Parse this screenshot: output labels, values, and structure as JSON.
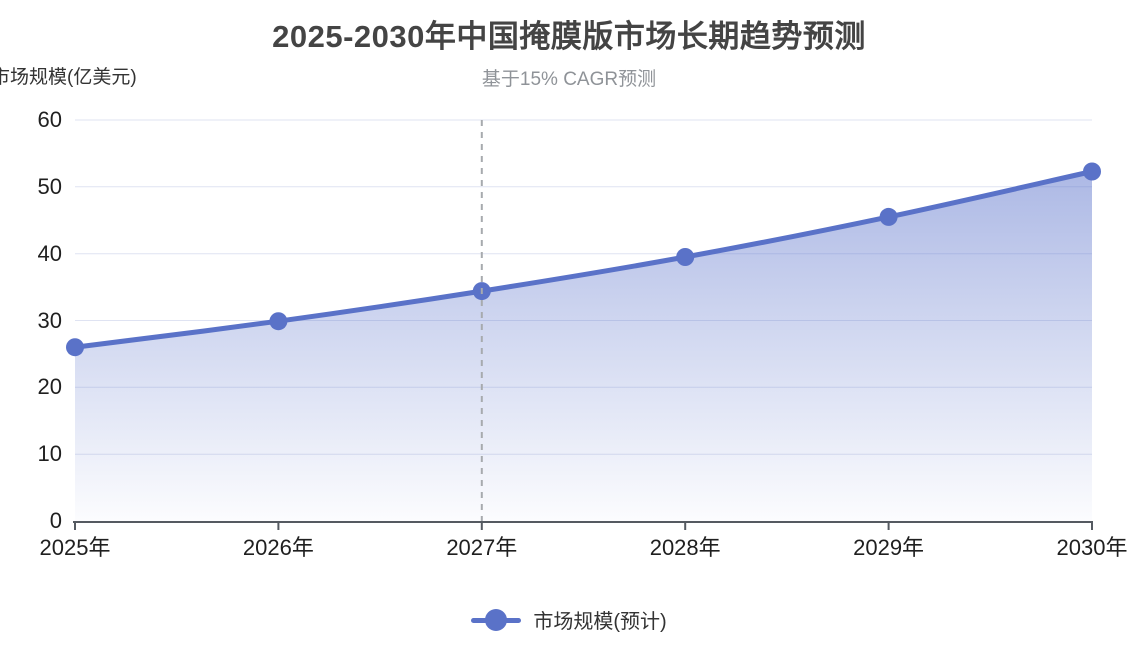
{
  "chart_data": {
    "type": "line",
    "title": "2025-2030年中国掩膜版市场长期趋势预测",
    "subtitle": "基于15% CAGR预测",
    "y_axis_name": "市场规模(亿美元)",
    "categories": [
      "2025年",
      "2026年",
      "2027年",
      "2028年",
      "2029年",
      "2030年"
    ],
    "series": [
      {
        "name": "市场规模(预计)",
        "values": [
          26,
          29.9,
          34.4,
          39.5,
          45.5,
          52.3
        ]
      }
    ],
    "ylim": [
      0,
      60
    ],
    "y_ticks_top_to_bottom": [
      "60",
      "50",
      "40",
      "30",
      "20",
      "10",
      "0"
    ],
    "smooth": true,
    "area_fill": true,
    "grid": true,
    "legend_position": "bottom",
    "annotations": [
      {
        "type": "vertical-dashed-line",
        "at_category": "2027年"
      }
    ],
    "colors": {
      "line": "#5a72c8",
      "point": "#5a72c8",
      "area_top": "rgba(91,115,203,0.50)",
      "area_bottom": "rgba(91,115,203,0.02)",
      "gridline": "#dfe3f2",
      "dashed_line": "#a7aaae",
      "axis_line": "#555a61",
      "title_text": "#444444",
      "subtitle_text": "#8f9398",
      "axis_text": "#1f1f1f"
    }
  },
  "legend": {
    "items": [
      {
        "label": "市场规模(预计)",
        "color": "#5a72c8"
      }
    ]
  }
}
